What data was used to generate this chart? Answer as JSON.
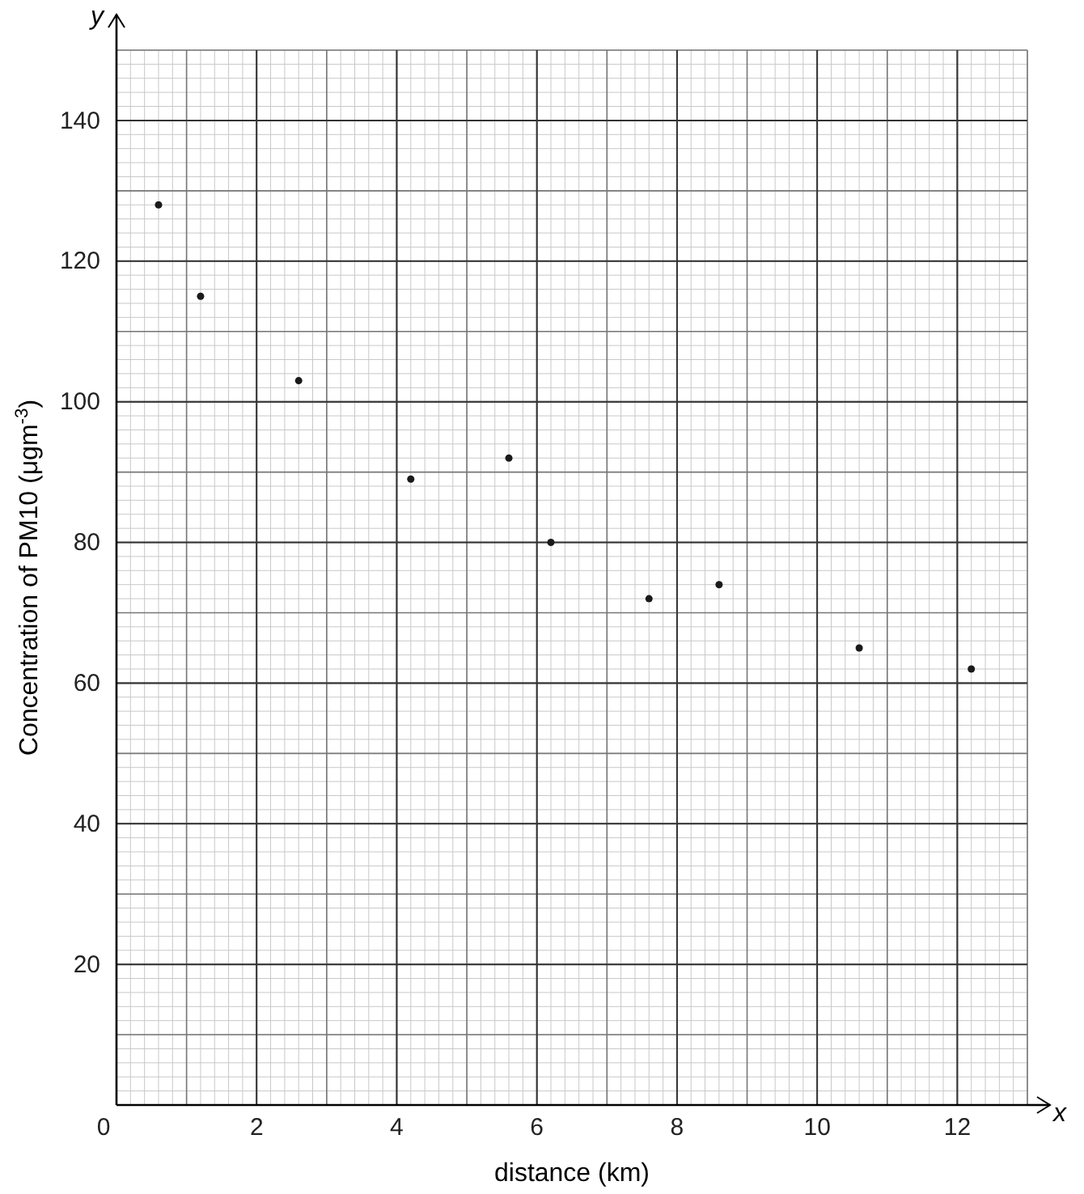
{
  "chart_data": {
    "type": "scatter",
    "xlabel": "distance (km)",
    "ylabel": "Concentration of PM10 (μgm$^{-3}$)",
    "annotations": [
      "x",
      "y"
    ],
    "x": [
      0.6,
      1.2,
      2.6,
      4.2,
      5.6,
      6.2,
      7.6,
      8.6,
      10.6,
      12.2
    ],
    "series": [
      {
        "color": "#1a1a1a",
        "values": [
          128,
          115,
          103,
          89,
          92,
          80,
          72,
          74,
          65,
          62
        ]
      }
    ],
    "xlim": [
      0,
      13
    ],
    "ylim": [
      0,
      150
    ],
    "xticks": [
      0,
      2,
      4,
      6,
      8,
      10,
      12
    ],
    "yticks": [
      20,
      40,
      60,
      80,
      100,
      120,
      140
    ],
    "grid": true,
    "marker": "circle"
  }
}
